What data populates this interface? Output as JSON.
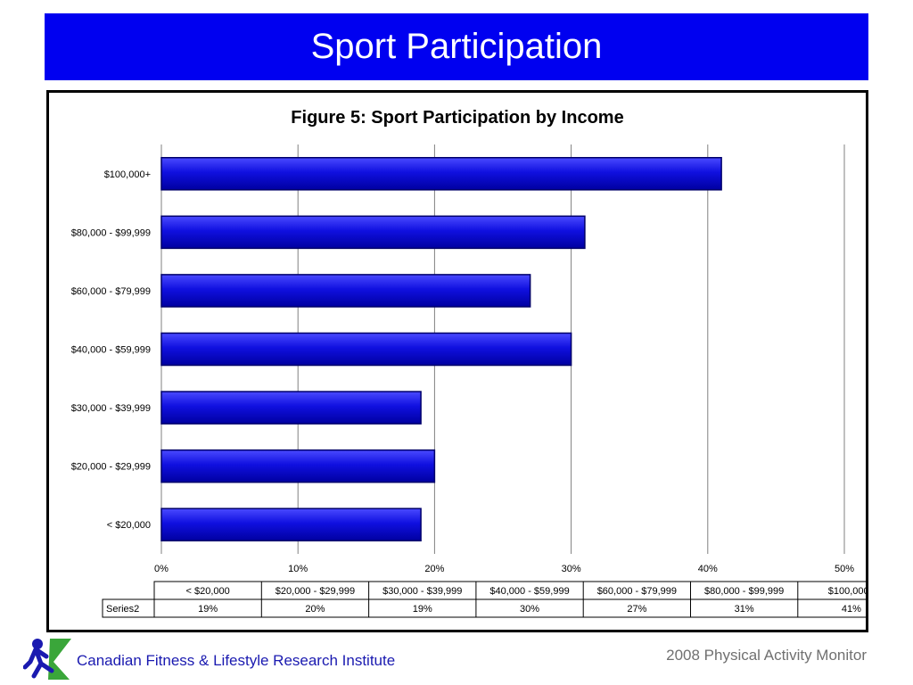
{
  "slide": {
    "title": "Sport Participation",
    "footer_left": "Canadian Fitness & Lifestyle Research Institute",
    "footer_right": "2008 Physical Activity Monitor"
  },
  "colors": {
    "banner": "#0000f0",
    "bar": "#1010e0",
    "bar_edge": "#00006a",
    "grid": "#808080"
  },
  "chart_data": {
    "type": "bar",
    "orientation": "horizontal",
    "title": "Figure 5: Sport Participation by Income",
    "categories": [
      "< $20,000",
      "$20,000 - $29,999",
      "$30,000 - $39,999",
      "$40,000 - $59,999",
      "$60,000 - $79,999",
      "$80,000 - $99,999",
      "$100,000+"
    ],
    "series": [
      {
        "name": "Series2",
        "values": [
          19,
          20,
          19,
          30,
          27,
          31,
          41
        ]
      }
    ],
    "value_labels": [
      "19%",
      "20%",
      "19%",
      "30%",
      "27%",
      "31%",
      "41%"
    ],
    "xticks": [
      0,
      10,
      20,
      30,
      40,
      50
    ],
    "xtick_labels": [
      "0%",
      "10%",
      "20%",
      "30%",
      "40%",
      "50%"
    ],
    "xlim": [
      0,
      50
    ],
    "grid": true,
    "data_table": true
  }
}
